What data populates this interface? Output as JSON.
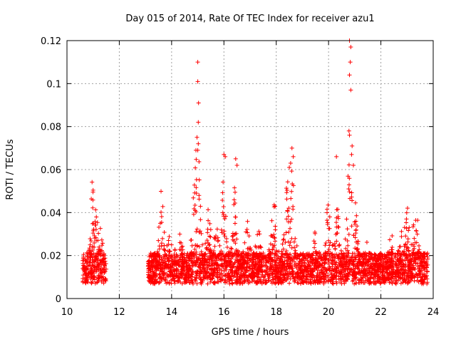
{
  "chart_data": {
    "type": "scatter",
    "title": "Day 015 of 2014, Rate Of TEC Index for receiver azu1",
    "xlabel": "GPS time / hours",
    "ylabel": "ROTI / TECUs",
    "xlim": [
      10,
      24
    ],
    "ylim": [
      0,
      0.12
    ],
    "xticks": [
      10,
      12,
      14,
      16,
      18,
      20,
      22,
      24
    ],
    "xtick_labels": [
      "10",
      "12",
      "14",
      "16",
      "18",
      "20",
      "22",
      "24"
    ],
    "yticks": [
      0,
      0.02,
      0.04,
      0.06,
      0.08,
      0.1,
      0.12
    ],
    "ytick_labels": [
      "0",
      "0.02",
      "0.04",
      "0.06",
      "0.08",
      "0.1",
      "0.12"
    ],
    "grid": true,
    "marker": "+",
    "color": "#ff0000",
    "series": [
      {
        "name": "ROTI",
        "segments": [
          {
            "x_start": 10.6,
            "x_end": 11.5,
            "base": 0.014,
            "spread": 0.009,
            "peaks": [
              [
                11.0,
                0.04
              ],
              [
                11.1,
                0.03
              ],
              [
                11.3,
                0.02
              ]
            ]
          },
          {
            "x_start": 13.1,
            "x_end": 23.8,
            "base": 0.014,
            "spread": 0.009,
            "peaks": [
              [
                13.6,
                0.03
              ],
              [
                13.9,
                0.015
              ],
              [
                14.3,
                0.015
              ],
              [
                14.9,
                0.05
              ],
              [
                15.0,
                0.06
              ],
              [
                15.4,
                0.025
              ],
              [
                15.7,
                0.025
              ],
              [
                16.0,
                0.045
              ],
              [
                16.4,
                0.035
              ],
              [
                16.9,
                0.02
              ],
              [
                17.3,
                0.02
              ],
              [
                17.9,
                0.03
              ],
              [
                18.4,
                0.04
              ],
              [
                18.6,
                0.045
              ],
              [
                19.5,
                0.012
              ],
              [
                20.0,
                0.03
              ],
              [
                20.3,
                0.04
              ],
              [
                20.8,
                0.07
              ],
              [
                21.0,
                0.04
              ],
              [
                21.4,
                0.012
              ],
              [
                22.4,
                0.01
              ],
              [
                22.8,
                0.015
              ],
              [
                23.0,
                0.03
              ],
              [
                23.3,
                0.035
              ]
            ]
          }
        ],
        "extremes": [
          {
            "x": 15.0,
            "y": 0.11
          },
          {
            "x": 15.0,
            "y": 0.101
          },
          {
            "x": 15.03,
            "y": 0.091
          },
          {
            "x": 15.02,
            "y": 0.082
          },
          {
            "x": 14.97,
            "y": 0.075
          },
          {
            "x": 15.0,
            "y": 0.069
          },
          {
            "x": 14.93,
            "y": 0.069
          },
          {
            "x": 20.8,
            "y": 0.12
          },
          {
            "x": 20.85,
            "y": 0.117
          },
          {
            "x": 20.83,
            "y": 0.11
          },
          {
            "x": 20.8,
            "y": 0.104
          },
          {
            "x": 20.85,
            "y": 0.097
          },
          {
            "x": 20.78,
            "y": 0.078
          },
          {
            "x": 20.8,
            "y": 0.076
          },
          {
            "x": 20.9,
            "y": 0.071
          },
          {
            "x": 20.88,
            "y": 0.067
          },
          {
            "x": 20.3,
            "y": 0.066
          },
          {
            "x": 18.6,
            "y": 0.07
          },
          {
            "x": 18.65,
            "y": 0.066
          },
          {
            "x": 16.0,
            "y": 0.067
          },
          {
            "x": 16.05,
            "y": 0.066
          },
          {
            "x": 16.45,
            "y": 0.065
          },
          {
            "x": 16.5,
            "y": 0.062
          },
          {
            "x": 18.55,
            "y": 0.063
          },
          {
            "x": 18.5,
            "y": 0.061
          },
          {
            "x": 20.95,
            "y": 0.062
          }
        ]
      }
    ]
  }
}
